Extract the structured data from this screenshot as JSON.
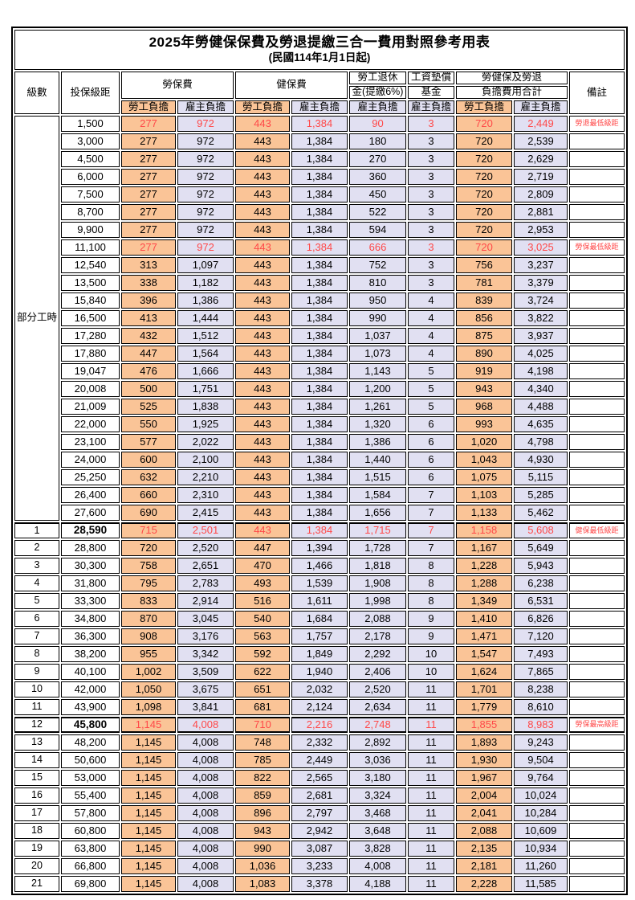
{
  "doc": {
    "title": "2025年勞健保保費及勞退提繳三合一費用對照參考用表",
    "subtitle": "(民國114年1月1日起)"
  },
  "header": {
    "level": "級數",
    "bracket": "投保級距",
    "labor_ins": "勞保費",
    "health_ins": "健保費",
    "pension_line1": "勞工退休",
    "pension_line2": "金(提繳6%)",
    "fund_line1": "工資墊償",
    "fund_line2": "基金",
    "total_line1": "勞健保及勞退",
    "total_line2": "負擔費用合計",
    "remark": "備註",
    "employee": "勞工負擔",
    "employer": "雇主負擔"
  },
  "part_time_label": "部分工時",
  "colors": {
    "employee_bg": "#FAC497",
    "employer_bg": "#E1E0F2",
    "highlight_red": "#FF4848"
  },
  "rows": [
    {
      "bracket": "1,500",
      "values": [
        "277",
        "972",
        "443",
        "1,384",
        "90",
        "3",
        "720",
        "2,449"
      ],
      "remark": "勞退最低級距",
      "red": true
    },
    {
      "bracket": "3,000",
      "values": [
        "277",
        "972",
        "443",
        "1,384",
        "180",
        "3",
        "720",
        "2,539"
      ]
    },
    {
      "bracket": "4,500",
      "values": [
        "277",
        "972",
        "443",
        "1,384",
        "270",
        "3",
        "720",
        "2,629"
      ]
    },
    {
      "bracket": "6,000",
      "values": [
        "277",
        "972",
        "443",
        "1,384",
        "360",
        "3",
        "720",
        "2,719"
      ]
    },
    {
      "bracket": "7,500",
      "values": [
        "277",
        "972",
        "443",
        "1,384",
        "450",
        "3",
        "720",
        "2,809"
      ]
    },
    {
      "bracket": "8,700",
      "values": [
        "277",
        "972",
        "443",
        "1,384",
        "522",
        "3",
        "720",
        "2,881"
      ]
    },
    {
      "bracket": "9,900",
      "values": [
        "277",
        "972",
        "443",
        "1,384",
        "594",
        "3",
        "720",
        "2,953"
      ]
    },
    {
      "bracket": "11,100",
      "values": [
        "277",
        "972",
        "443",
        "1,384",
        "666",
        "3",
        "720",
        "3,025"
      ],
      "remark": "勞保最低級距",
      "red": true
    },
    {
      "bracket": "12,540",
      "values": [
        "313",
        "1,097",
        "443",
        "1,384",
        "752",
        "3",
        "756",
        "3,237"
      ]
    },
    {
      "bracket": "13,500",
      "values": [
        "338",
        "1,182",
        "443",
        "1,384",
        "810",
        "3",
        "781",
        "3,379"
      ]
    },
    {
      "bracket": "15,840",
      "values": [
        "396",
        "1,386",
        "443",
        "1,384",
        "950",
        "4",
        "839",
        "3,724"
      ]
    },
    {
      "bracket": "16,500",
      "values": [
        "413",
        "1,444",
        "443",
        "1,384",
        "990",
        "4",
        "856",
        "3,822"
      ]
    },
    {
      "bracket": "17,280",
      "values": [
        "432",
        "1,512",
        "443",
        "1,384",
        "1,037",
        "4",
        "875",
        "3,937"
      ]
    },
    {
      "bracket": "17,880",
      "values": [
        "447",
        "1,564",
        "443",
        "1,384",
        "1,073",
        "4",
        "890",
        "4,025"
      ]
    },
    {
      "bracket": "19,047",
      "values": [
        "476",
        "1,666",
        "443",
        "1,384",
        "1,143",
        "5",
        "919",
        "4,198"
      ]
    },
    {
      "bracket": "20,008",
      "values": [
        "500",
        "1,751",
        "443",
        "1,384",
        "1,200",
        "5",
        "943",
        "4,340"
      ]
    },
    {
      "bracket": "21,009",
      "values": [
        "525",
        "1,838",
        "443",
        "1,384",
        "1,261",
        "5",
        "968",
        "4,488"
      ]
    },
    {
      "bracket": "22,000",
      "values": [
        "550",
        "1,925",
        "443",
        "1,384",
        "1,320",
        "6",
        "993",
        "4,635"
      ]
    },
    {
      "bracket": "23,100",
      "values": [
        "577",
        "2,022",
        "443",
        "1,384",
        "1,386",
        "6",
        "1,020",
        "4,798"
      ]
    },
    {
      "bracket": "24,000",
      "values": [
        "600",
        "2,100",
        "443",
        "1,384",
        "1,440",
        "6",
        "1,043",
        "4,930"
      ]
    },
    {
      "bracket": "25,250",
      "values": [
        "632",
        "2,210",
        "443",
        "1,384",
        "1,515",
        "6",
        "1,075",
        "5,115"
      ]
    },
    {
      "bracket": "26,400",
      "values": [
        "660",
        "2,310",
        "443",
        "1,384",
        "1,584",
        "7",
        "1,103",
        "5,285"
      ]
    },
    {
      "bracket": "27,600",
      "values": [
        "690",
        "2,415",
        "443",
        "1,384",
        "1,656",
        "7",
        "1,133",
        "5,462"
      ]
    },
    {
      "level": "1",
      "bracket": "28,590",
      "values": [
        "715",
        "2,501",
        "443",
        "1,384",
        "1,715",
        "7",
        "1,158",
        "5,608"
      ],
      "remark": "健保最低級距",
      "red": true,
      "bold": true,
      "thick": "thick-top"
    },
    {
      "level": "2",
      "bracket": "28,800",
      "values": [
        "720",
        "2,520",
        "447",
        "1,394",
        "1,728",
        "7",
        "1,167",
        "5,649"
      ]
    },
    {
      "level": "3",
      "bracket": "30,300",
      "values": [
        "758",
        "2,651",
        "470",
        "1,466",
        "1,818",
        "8",
        "1,228",
        "5,943"
      ]
    },
    {
      "level": "4",
      "bracket": "31,800",
      "values": [
        "795",
        "2,783",
        "493",
        "1,539",
        "1,908",
        "8",
        "1,288",
        "6,238"
      ]
    },
    {
      "level": "5",
      "bracket": "33,300",
      "values": [
        "833",
        "2,914",
        "516",
        "1,611",
        "1,998",
        "8",
        "1,349",
        "6,531"
      ]
    },
    {
      "level": "6",
      "bracket": "34,800",
      "values": [
        "870",
        "3,045",
        "540",
        "1,684",
        "2,088",
        "9",
        "1,410",
        "6,826"
      ]
    },
    {
      "level": "7",
      "bracket": "36,300",
      "values": [
        "908",
        "3,176",
        "563",
        "1,757",
        "2,178",
        "9",
        "1,471",
        "7,120"
      ]
    },
    {
      "level": "8",
      "bracket": "38,200",
      "values": [
        "955",
        "3,342",
        "592",
        "1,849",
        "2,292",
        "10",
        "1,547",
        "7,493"
      ]
    },
    {
      "level": "9",
      "bracket": "40,100",
      "values": [
        "1,002",
        "3,509",
        "622",
        "1,940",
        "2,406",
        "10",
        "1,624",
        "7,865"
      ]
    },
    {
      "level": "10",
      "bracket": "42,000",
      "values": [
        "1,050",
        "3,675",
        "651",
        "2,032",
        "2,520",
        "11",
        "1,701",
        "8,238"
      ]
    },
    {
      "level": "11",
      "bracket": "43,900",
      "values": [
        "1,098",
        "3,841",
        "681",
        "2,124",
        "2,634",
        "11",
        "1,779",
        "8,610"
      ]
    },
    {
      "level": "12",
      "bracket": "45,800",
      "values": [
        "1,145",
        "4,008",
        "710",
        "2,216",
        "2,748",
        "11",
        "1,855",
        "8,983"
      ],
      "remark": "勞保最高級距",
      "red": true,
      "bold": true,
      "thick": "thick-top thick-bottom"
    },
    {
      "level": "13",
      "bracket": "48,200",
      "values": [
        "1,145",
        "4,008",
        "748",
        "2,332",
        "2,892",
        "11",
        "1,893",
        "9,243"
      ]
    },
    {
      "level": "14",
      "bracket": "50,600",
      "values": [
        "1,145",
        "4,008",
        "785",
        "2,449",
        "3,036",
        "11",
        "1,930",
        "9,504"
      ]
    },
    {
      "level": "15",
      "bracket": "53,000",
      "values": [
        "1,145",
        "4,008",
        "822",
        "2,565",
        "3,180",
        "11",
        "1,967",
        "9,764"
      ]
    },
    {
      "level": "16",
      "bracket": "55,400",
      "values": [
        "1,145",
        "4,008",
        "859",
        "2,681",
        "3,324",
        "11",
        "2,004",
        "10,024"
      ]
    },
    {
      "level": "17",
      "bracket": "57,800",
      "values": [
        "1,145",
        "4,008",
        "896",
        "2,797",
        "3,468",
        "11",
        "2,041",
        "10,284"
      ]
    },
    {
      "level": "18",
      "bracket": "60,800",
      "values": [
        "1,145",
        "4,008",
        "943",
        "2,942",
        "3,648",
        "11",
        "2,088",
        "10,609"
      ]
    },
    {
      "level": "19",
      "bracket": "63,800",
      "values": [
        "1,145",
        "4,008",
        "990",
        "3,087",
        "3,828",
        "11",
        "2,135",
        "10,934"
      ]
    },
    {
      "level": "20",
      "bracket": "66,800",
      "values": [
        "1,145",
        "4,008",
        "1,036",
        "3,233",
        "4,008",
        "11",
        "2,181",
        "11,260"
      ]
    },
    {
      "level": "21",
      "bracket": "69,800",
      "values": [
        "1,145",
        "4,008",
        "1,083",
        "3,378",
        "4,188",
        "11",
        "2,228",
        "11,585"
      ]
    }
  ]
}
